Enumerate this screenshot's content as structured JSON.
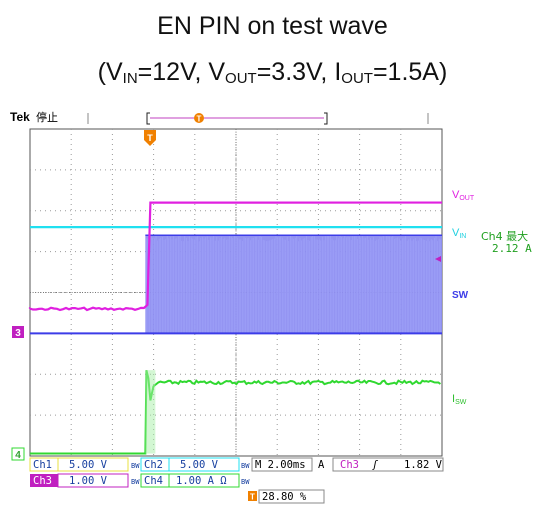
{
  "chart_data": {
    "type": "line",
    "title_line1": "EN PIN on test wave",
    "title_line2": {
      "open": "(V",
      "vin_sub": "IN",
      "vin_val": "=12V, V",
      "vout_sub": "OUT",
      "vout_val": "=3.3V, I",
      "iout_sub": "OUT",
      "iout_val": "=1.5A)"
    },
    "scope": {
      "brand": "Tek",
      "status": "停止",
      "trigger_marker": "T",
      "ground_markers": [
        "3",
        "4"
      ]
    },
    "x_range_div": [
      0,
      10
    ],
    "y_range_div": [
      0,
      8
    ],
    "grid": true,
    "enable_time_div": 2.8,
    "series": [
      {
        "name": "VOUT",
        "label_main": "V",
        "label_sub": "OUT",
        "color": "#e020e0",
        "before_level_div": 3.6,
        "after_level_div": 6.2
      },
      {
        "name": "VIN",
        "label_main": "V",
        "label_sub": "IN",
        "color": "#20e0f0",
        "level_div": 5.6
      },
      {
        "name": "SW",
        "label_main": "SW",
        "color": "#3c3ce8",
        "fill": "#8c8cf0",
        "low_div": 3.0,
        "high_div": 5.4
      },
      {
        "name": "ISW",
        "label_main": "I",
        "label_sub": "SW",
        "color": "#30d830",
        "before_level_div": 0.06,
        "after_level_div": 1.8,
        "peak_div": 2.1
      }
    ],
    "measurement": {
      "label": "Ch4 最大",
      "value": "2.12 A"
    },
    "readouts": {
      "row1": {
        "ch1_label": "Ch1",
        "ch1_value": "5.00 V",
        "ch1_flag": "BW",
        "ch2_label": "Ch2",
        "ch2_value": "5.00 V",
        "ch2_flag": "BW",
        "timebase": "M 2.00ms",
        "mode": "A",
        "trig_src": "Ch3",
        "trig_slope": "ʃ",
        "trig_level": "1.82 V"
      },
      "row2": {
        "ch3_label": "Ch3",
        "ch3_value": "1.00 V",
        "ch3_flag": "BW",
        "ch4_label": "Ch4",
        "ch4_value": "1.00 A Ω",
        "ch4_flag": "BW"
      },
      "trig_pos": "28.80 %"
    },
    "colors": {
      "ch1": "#e8e040",
      "ch2": "#20e0f0",
      "ch3": "#e020e0",
      "ch4": "#30d830",
      "sw": "#3c3ce8",
      "trigger": "#f08000"
    }
  }
}
